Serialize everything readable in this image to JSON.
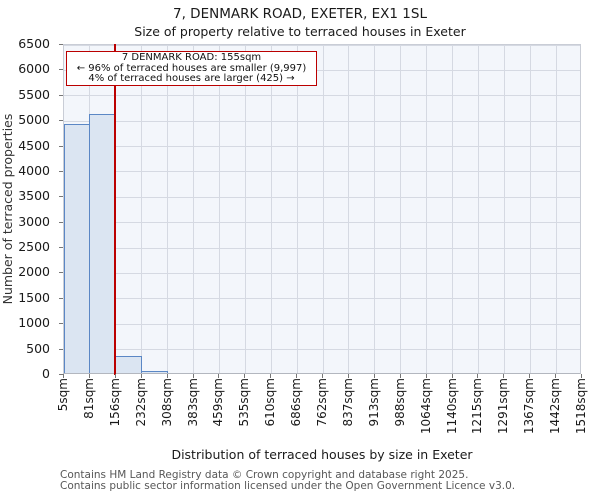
{
  "chart_data": {
    "type": "bar",
    "title": "7, DENMARK ROAD, EXETER, EX1 1SL",
    "subtitle": "Size of property relative to terraced houses in Exeter",
    "xlabel": "Distribution of terraced houses by size in Exeter",
    "ylabel": "Number of terraced properties",
    "bin_edges_sqm": [
      5,
      81,
      156,
      232,
      308,
      383,
      459,
      535,
      610,
      686,
      762,
      837,
      913,
      988,
      1064,
      1140,
      1215,
      1291,
      1367,
      1442,
      1518
    ],
    "xtick_labels": [
      "5sqm",
      "81sqm",
      "156sqm",
      "232sqm",
      "308sqm",
      "383sqm",
      "459sqm",
      "535sqm",
      "610sqm",
      "686sqm",
      "762sqm",
      "837sqm",
      "913sqm",
      "988sqm",
      "1064sqm",
      "1140sqm",
      "1215sqm",
      "1291sqm",
      "1367sqm",
      "1442sqm",
      "1518sqm"
    ],
    "values": [
      4900,
      5100,
      340,
      40,
      0,
      0,
      0,
      0,
      0,
      0,
      0,
      0,
      0,
      0,
      0,
      0,
      0,
      0,
      0,
      0
    ],
    "ylim": [
      0,
      6500
    ],
    "yticks": [
      0,
      500,
      1000,
      1500,
      2000,
      2500,
      3000,
      3500,
      4000,
      4500,
      5000,
      5500,
      6000,
      6500
    ],
    "grid": true,
    "legend": null,
    "marker": {
      "x_sqm": 155,
      "label": "7 DENMARK ROAD: 155sqm"
    },
    "annotation": {
      "line1": "7 DENMARK ROAD: 155sqm",
      "line2": "← 96% of terraced houses are smaller (9,997)",
      "line3": "4% of terraced houses are larger (425) →"
    },
    "colors": {
      "bar_fill": "#dbe5f2",
      "bar_edge": "#5b87c5",
      "marker_line": "#bb0000",
      "annotation_border": "#bb0000",
      "plot_background": "#f3f6fb",
      "gridline": "#d5d9e2"
    }
  },
  "footer": {
    "line1": "Contains HM Land Registry data © Crown copyright and database right 2025.",
    "line2": "Contains public sector information licensed under the Open Government Licence v3.0."
  }
}
